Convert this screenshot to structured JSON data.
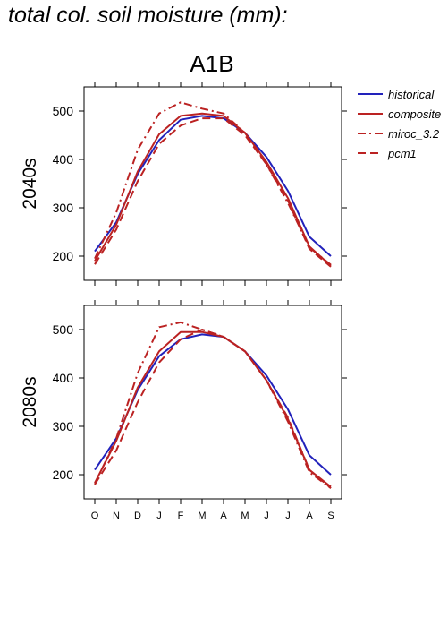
{
  "page_title": "total col. soil moisture (mm):",
  "colors": {
    "historical": "#2222bb",
    "scenario": "#bb2222"
  },
  "chart_data": {
    "type": "line",
    "title": "A1B",
    "months": [
      "O",
      "N",
      "D",
      "J",
      "F",
      "M",
      "A",
      "M",
      "J",
      "J",
      "A",
      "S"
    ],
    "ylim": [
      150,
      550
    ],
    "yticks": [
      200,
      300,
      400,
      500
    ],
    "legend": [
      {
        "name": "historical",
        "color": "#2222bb",
        "style": "solid"
      },
      {
        "name": "composite",
        "color": "#bb2222",
        "style": "solid"
      },
      {
        "name": "miroc_3.2",
        "color": "#bb2222",
        "style": "dashdot"
      },
      {
        "name": "pcm1",
        "color": "#bb2222",
        "style": "dashed"
      }
    ],
    "panels": [
      {
        "label": "2040s",
        "series": [
          {
            "name": "historical",
            "values": [
              210,
              270,
              370,
              440,
              482,
              490,
              485,
              455,
              405,
              335,
              240,
              200
            ]
          },
          {
            "name": "composite",
            "values": [
              190,
              265,
              375,
              452,
              490,
              495,
              490,
              455,
              395,
              320,
              220,
              180
            ]
          },
          {
            "name": "miroc_3.2",
            "values": [
              195,
              290,
              420,
              495,
              518,
              505,
              495,
              455,
              390,
              310,
              218,
              182
            ]
          },
          {
            "name": "pcm1",
            "values": [
              183,
              255,
              355,
              432,
              470,
              485,
              485,
              450,
              390,
              315,
              215,
              178
            ]
          }
        ]
      },
      {
        "label": "2080s",
        "series": [
          {
            "name": "historical",
            "values": [
              210,
              275,
              375,
              445,
              480,
              490,
              485,
              455,
              405,
              335,
              240,
              200
            ]
          },
          {
            "name": "composite",
            "values": [
              183,
              270,
              380,
              455,
              495,
              495,
              485,
              455,
              395,
              315,
              210,
              175
            ]
          },
          {
            "name": "miroc_3.2",
            "values": [
              180,
              275,
              410,
              505,
              515,
              500,
              485,
              455,
              395,
              310,
              205,
              172
            ]
          },
          {
            "name": "pcm1",
            "values": [
              180,
              250,
              350,
              432,
              480,
              500,
              485,
              455,
              395,
              318,
              210,
              172
            ]
          }
        ]
      }
    ]
  }
}
